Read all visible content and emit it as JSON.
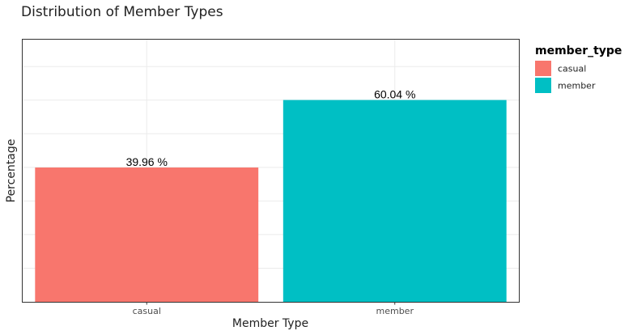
{
  "chart_data": {
    "type": "bar",
    "title": "Distribution of Member Types",
    "xlabel": "Member Type",
    "ylabel": "Percentage",
    "categories": [
      "casual",
      "member"
    ],
    "values": [
      39.96,
      60.04
    ],
    "data_labels": [
      "39.96 %",
      "60.04 %"
    ],
    "colors": [
      "#F8766D",
      "#00BFC4"
    ],
    "ylim": [
      0,
      78
    ],
    "grid": true,
    "y_tick_labels_shown": false,
    "legend": {
      "title": "member_type",
      "position": "right",
      "entries": [
        {
          "label": "casual",
          "color": "#F8766D"
        },
        {
          "label": "member",
          "color": "#00BFC4"
        }
      ]
    }
  }
}
